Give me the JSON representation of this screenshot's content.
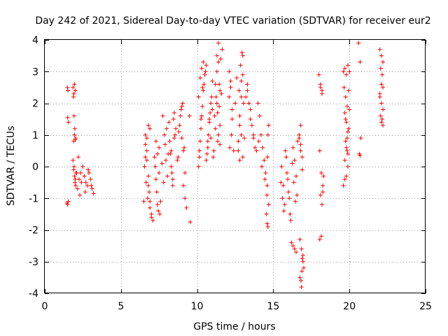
{
  "chart_data": {
    "type": "scatter",
    "title": "Day 242 of 2021, Sidereal Day-to-day VTEC variation (SDTVAR) for receiver eur2",
    "xlabel": "GPS time / hours",
    "ylabel": "SDTVAR / TECUs",
    "xlim": [
      0,
      25
    ],
    "ylim": [
      -4,
      4
    ],
    "xticks": [
      0,
      5,
      10,
      15,
      20,
      25
    ],
    "yticks": [
      -4,
      -3,
      -2,
      -1,
      0,
      1,
      2,
      3,
      4
    ],
    "grid": true,
    "marker": "+",
    "color": "#ff0000",
    "series": [
      {
        "name": "SDTVAR",
        "x": [
          1.45,
          1.5,
          1.55,
          1.48,
          1.52,
          1.5,
          1.55,
          1.85,
          1.9,
          1.95,
          2.0,
          1.88,
          1.92,
          1.97,
          2.02,
          1.9,
          1.95,
          2.0,
          1.85,
          1.9,
          1.95,
          2.0,
          2.05,
          1.92,
          1.98,
          2.03,
          2.1,
          2.2,
          2.3,
          2.4,
          2.5,
          2.15,
          2.25,
          2.35,
          2.6,
          2.7,
          2.8,
          2.9,
          3.0,
          3.1,
          3.2,
          2.65,
          2.85,
          3.05,
          6.5,
          6.6,
          6.7,
          6.8,
          6.9,
          6.55,
          6.65,
          6.75,
          6.85,
          6.6,
          6.7,
          6.8,
          6.9,
          7.0,
          6.6,
          6.7,
          6.8,
          6.9,
          7.0,
          7.1,
          7.2,
          7.3,
          7.4,
          7.5,
          7.25,
          7.35,
          7.45,
          7.55,
          7.3,
          7.4,
          7.5,
          7.6,
          7.7,
          7.8,
          7.9,
          8.0,
          8.1,
          7.75,
          7.85,
          7.95,
          8.05,
          8.15,
          8.2,
          8.3,
          8.4,
          8.5,
          8.6,
          8.25,
          8.35,
          8.45,
          8.55,
          8.3,
          8.4,
          8.5,
          8.7,
          8.8,
          8.9,
          9.0,
          9.1,
          9.2,
          8.75,
          8.85,
          8.95,
          9.05,
          9.15,
          9.0,
          9.1,
          9.2,
          9.3,
          9.5,
          9.55,
          10.1,
          10.2,
          10.3,
          10.4,
          10.15,
          10.25,
          10.35,
          10.1,
          10.2,
          10.3,
          10.4,
          10.5,
          10.6,
          10.15,
          10.25,
          10.35,
          10.45,
          10.55,
          10.6,
          10.7,
          10.8,
          10.9,
          11.0,
          10.65,
          10.75,
          10.85,
          10.95,
          10.7,
          10.8,
          10.9,
          11.0,
          11.1,
          11.2,
          11.3,
          11.4,
          11.5,
          11.05,
          11.15,
          11.25,
          11.35,
          11.45,
          11.2,
          11.3,
          11.4,
          11.5,
          11.6,
          11.3,
          11.4,
          11.5,
          11.35,
          11.45,
          11.55,
          11.65,
          12.1,
          12.2,
          12.3,
          12.15,
          12.25,
          12.1,
          12.2,
          12.3,
          12.4,
          12.5,
          12.6,
          12.7,
          12.8,
          12.9,
          13.0,
          12.75,
          12.85,
          12.95,
          13.05,
          12.8,
          12.9,
          13.0,
          13.1,
          12.7,
          12.8,
          12.9,
          13.0,
          13.2,
          13.3,
          13.4,
          13.5,
          13.6,
          13.7,
          13.8,
          13.3,
          13.5,
          13.7,
          13.9,
          14.0,
          14.1,
          14.2,
          14.3,
          14.4,
          14.5,
          14.6,
          14.7,
          14.05,
          14.25,
          14.45,
          14.65,
          14.55,
          14.6,
          14.65,
          14.7,
          14.62,
          14.58,
          15.5,
          15.6,
          15.7,
          15.55,
          15.65,
          15.75,
          15.8,
          15.9,
          16.0,
          16.1,
          15.85,
          15.95,
          16.05,
          16.15,
          16.2,
          16.3,
          16.4,
          16.5,
          16.25,
          16.35,
          16.45,
          16.55,
          16.3,
          16.4,
          16.5,
          16.6,
          16.7,
          16.8,
          16.9,
          17.0,
          16.75,
          16.85,
          16.95,
          16.7,
          16.8,
          16.9,
          16.75,
          16.85,
          16.95,
          16.8,
          16.9,
          16.82,
          16.88,
          18.0,
          18.1,
          18.2,
          18.05,
          18.15,
          18.25,
          18.1,
          18.2,
          18.3,
          18.15,
          18.25,
          18.05,
          18.1,
          18.2,
          19.6,
          19.7,
          19.8,
          19.9,
          20.0,
          19.65,
          19.75,
          19.85,
          19.95,
          19.7,
          19.8,
          19.9,
          20.0,
          19.75,
          19.85,
          19.95,
          19.7,
          19.8,
          19.9,
          19.6,
          19.7,
          19.8,
          19.9,
          19.75,
          19.85,
          20.6,
          20.7,
          20.75,
          20.65,
          20.7,
          22.0,
          22.1,
          22.2,
          22.05,
          22.15,
          22.1,
          22.2,
          22.0,
          22.1,
          22.2,
          22.05,
          22.15,
          22.1,
          22.0,
          22.2
        ],
        "y": [
          -1.15,
          -1.2,
          -1.1,
          2.5,
          2.4,
          1.55,
          1.4,
          2.5,
          2.3,
          2.6,
          2.4,
          2.2,
          1.6,
          1.2,
          0.9,
          0.8,
          1.0,
          0.85,
          0.2,
          -0.1,
          -0.3,
          -0.4,
          -0.2,
          0.0,
          -0.5,
          -0.6,
          -0.2,
          0.3,
          -0.9,
          -0.5,
          0.0,
          -0.7,
          -0.4,
          -0.2,
          -0.3,
          -0.5,
          -0.6,
          -0.2,
          -0.4,
          -0.7,
          -0.85,
          -0.8,
          -0.1,
          -0.6,
          -1.1,
          0.3,
          0.9,
          1.3,
          1.2,
          0.0,
          -0.5,
          -1.0,
          -0.8,
          0.7,
          0.5,
          -0.3,
          -1.3,
          -1.5,
          1.0,
          0.2,
          -0.6,
          -1.1,
          -1.6,
          -1.7,
          0.3,
          -0.4,
          -1.2,
          0.6,
          0.0,
          -0.8,
          -1.4,
          -1.5,
          0.8,
          0.4,
          -0.2,
          -1.1,
          0.1,
          -0.5,
          0.7,
          1.2,
          0.4,
          1.6,
          1.0,
          0.2,
          -0.3,
          1.4,
          0.8,
          0.0,
          -0.4,
          1.7,
          1.2,
          0.4,
          -0.2,
          1.5,
          1.0,
          0.5,
          -0.6,
          0.9,
          0.2,
          1.1,
          1.6,
          1.9,
          0.5,
          -0.2,
          0.3,
          1.3,
          1.8,
          2.0,
          0.6,
          0.9,
          -0.6,
          -1.0,
          -1.3,
          1.6,
          -1.75,
          2.2,
          2.8,
          3.1,
          3.3,
          0.5,
          1.5,
          2.5,
          0.0,
          0.8,
          1.6,
          2.4,
          2.9,
          3.2,
          0.3,
          1.2,
          1.9,
          2.6,
          3.0,
          0.2,
          0.6,
          1.4,
          2.0,
          2.7,
          0.4,
          1.0,
          1.7,
          2.2,
          0.8,
          1.5,
          0.9,
          1.8,
          0.5,
          1.2,
          2.0,
          1.0,
          2.4,
          0.3,
          1.6,
          2.2,
          0.8,
          1.9,
          2.6,
          3.0,
          3.3,
          1.3,
          2.3,
          3.5,
          3.9,
          0.7,
          1.7,
          2.6,
          3.4,
          3.7,
          3.0,
          2.5,
          1.8,
          0.6,
          1.0,
          2.2,
          2.7,
          1.5,
          0.5,
          2.0,
          2.8,
          0.8,
          1.6,
          1.0,
          0.3,
          2.4,
          3.2,
          3.6,
          2.0,
          1.3,
          2.7,
          3.5,
          0.9,
          0.5,
          0.2,
          2.2,
          2.9,
          2.2,
          2.6,
          2.0,
          1.5,
          1.3,
          0.9,
          0.6,
          2.4,
          1.8,
          1.0,
          0.5,
          2.0,
          1.6,
          1.0,
          0.6,
          0.2,
          -0.2,
          -0.6,
          -1.2,
          0.8,
          0.0,
          -0.4,
          1.0,
          -1.5,
          -1.8,
          -1.9,
          1.3,
          0.3,
          -0.9,
          -0.5,
          -1.0,
          -1.4,
          0.0,
          -0.6,
          -1.2,
          0.5,
          -0.2,
          -0.8,
          -1.5,
          0.3,
          -0.4,
          -1.0,
          -1.7,
          -2.4,
          -2.5,
          -2.6,
          -2.7,
          0.1,
          -0.5,
          -1.1,
          -0.9,
          0.6,
          0.2,
          -0.3,
          0.8,
          1.0,
          0.5,
          -2.9,
          -3.2,
          -3.5,
          -3.8,
          -3.0,
          0.9,
          1.3,
          0.3,
          -2.3,
          -2.6,
          -2.8,
          0.7,
          -0.1,
          -3.6,
          -3.3,
          2.9,
          2.6,
          2.3,
          0.5,
          -0.2,
          -0.6,
          -0.9,
          -1.2,
          -0.3,
          -2.2,
          -0.8,
          -2.3,
          2.5,
          2.4,
          3.0,
          3.1,
          2.9,
          3.2,
          3.0,
          2.5,
          2.2,
          1.9,
          2.4,
          1.7,
          1.4,
          1.1,
          1.8,
          0.8,
          0.5,
          1.2,
          0.2,
          -0.3,
          0.4,
          -0.6,
          -0.4,
          0.6,
          0.0,
          1.5,
          0.9,
          3.9,
          3.3,
          0.9,
          0.4,
          0.35,
          3.7,
          3.5,
          3.3,
          3.1,
          2.9,
          2.6,
          2.5,
          2.2,
          2.0,
          1.8,
          1.6,
          1.5,
          1.4,
          2.3,
          1.3
        ]
      }
    ]
  }
}
